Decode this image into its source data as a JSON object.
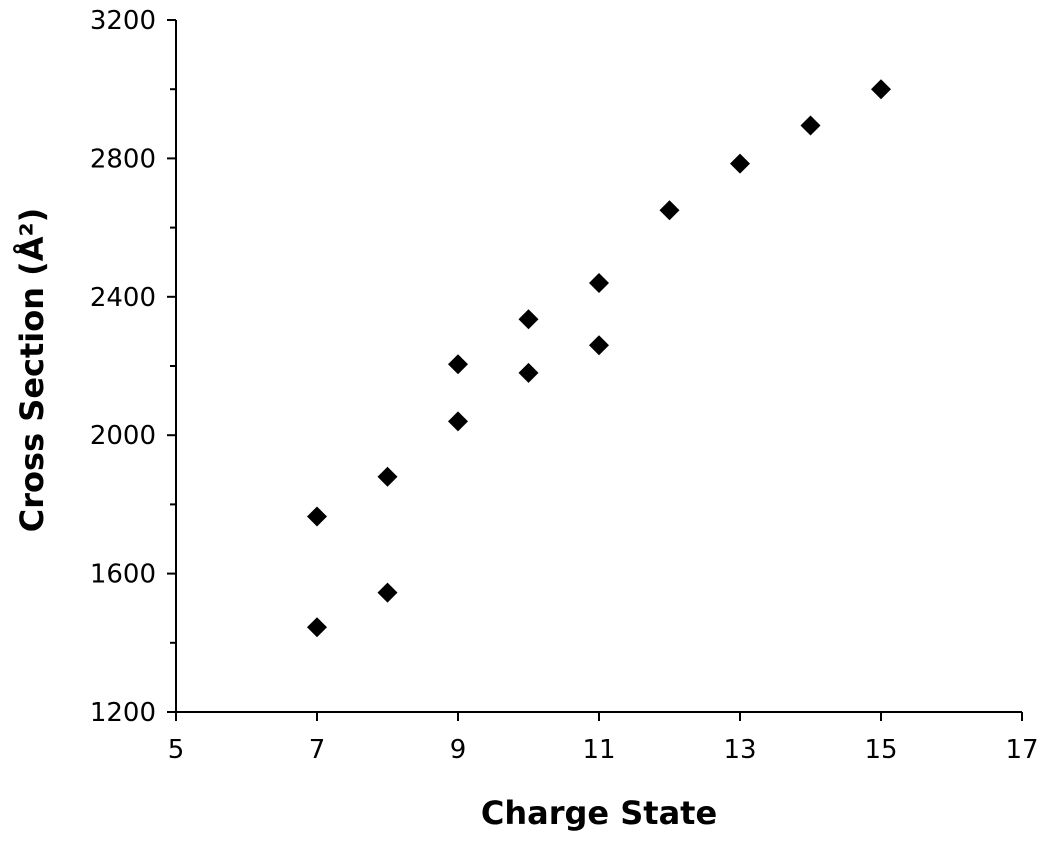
{
  "chart_data": {
    "type": "scatter",
    "title": "",
    "xlabel": "Charge State",
    "ylabel": "Cross Section (Å²)",
    "xlim": [
      5,
      17
    ],
    "ylim": [
      1200,
      3200
    ],
    "xticks": [
      5,
      7,
      9,
      11,
      13,
      15,
      17
    ],
    "yticks": [
      1200,
      1600,
      2000,
      2400,
      2800,
      3200
    ],
    "y_minor_step": 200,
    "grid": false,
    "legend": "none",
    "marker": "diamond",
    "marker_color": "#000000",
    "series": [
      {
        "points": [
          {
            "x": 7,
            "y": 1765
          },
          {
            "x": 7,
            "y": 1445
          },
          {
            "x": 8,
            "y": 1880
          },
          {
            "x": 8,
            "y": 1545
          },
          {
            "x": 9,
            "y": 2205
          },
          {
            "x": 9,
            "y": 2040
          },
          {
            "x": 10,
            "y": 2335
          },
          {
            "x": 10,
            "y": 2180
          },
          {
            "x": 11,
            "y": 2440
          },
          {
            "x": 11,
            "y": 2260
          },
          {
            "x": 12,
            "y": 2650
          },
          {
            "x": 13,
            "y": 2785
          },
          {
            "x": 14,
            "y": 2895
          },
          {
            "x": 15,
            "y": 3000
          }
        ]
      }
    ]
  }
}
